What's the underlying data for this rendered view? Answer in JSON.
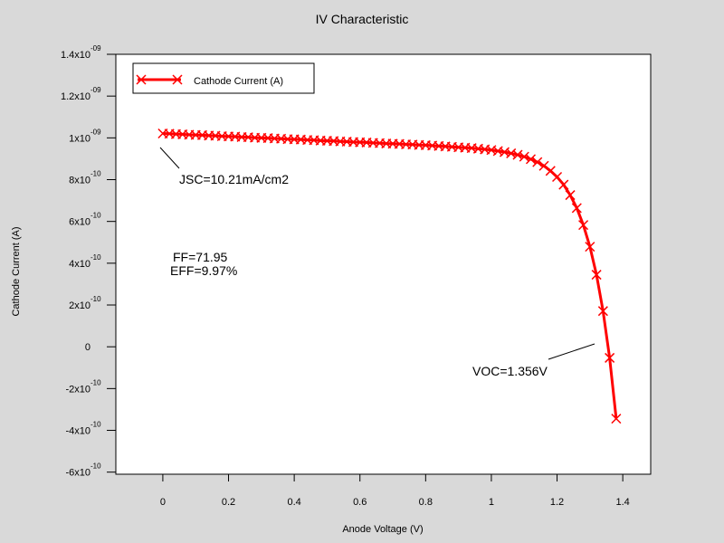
{
  "chart_data": {
    "type": "line",
    "title": "IV Characteristic",
    "x_label": "Anode Voltage (V)",
    "y_label": "Cathode Current (A)",
    "xlim": [
      -0.143,
      1.485
    ],
    "ylim": [
      -6.1e-10,
      1.4e-09
    ],
    "xticks": [
      0,
      0.2,
      0.4,
      0.6,
      0.8,
      1,
      1.2,
      1.4
    ],
    "yticks": [
      {
        "value": -6e-10,
        "label": "-6x10",
        "exponent": "-10"
      },
      {
        "value": -4e-10,
        "label": "-4x10",
        "exponent": "-10"
      },
      {
        "value": -2e-10,
        "label": "-2x10",
        "exponent": "-10"
      },
      0,
      {
        "value": 2e-10,
        "label": "2x10",
        "exponent": "-10"
      },
      {
        "value": 4e-10,
        "label": "4x10",
        "exponent": "-10"
      },
      {
        "value": 6e-10,
        "label": "6x10",
        "exponent": "-10"
      },
      {
        "value": 8e-10,
        "label": "8x10",
        "exponent": "-10"
      },
      {
        "value": 1e-09,
        "label": "1x10",
        "exponent": "-09"
      },
      {
        "value": 1.2e-09,
        "label": "1.2x10",
        "exponent": "-09"
      },
      {
        "value": 1.4e-09,
        "label": "1.4x10",
        "exponent": "-09"
      }
    ],
    "legend": "top-left",
    "annotations": [
      "JSC=10.21mA/cm2",
      "FF=71.95",
      "EFF=9.97%",
      "VOC=1.356V"
    ],
    "x": [
      0,
      0.02,
      0.04,
      0.06,
      0.08,
      0.1,
      0.12,
      0.14,
      0.16,
      0.18,
      0.2,
      0.22,
      0.24,
      0.26,
      0.28,
      0.3,
      0.32,
      0.34,
      0.36,
      0.38,
      0.4,
      0.42,
      0.44,
      0.46,
      0.48,
      0.5,
      0.52,
      0.54,
      0.56,
      0.58,
      0.6,
      0.62,
      0.64,
      0.66,
      0.68,
      0.7,
      0.72,
      0.74,
      0.76,
      0.78,
      0.8,
      0.82,
      0.84,
      0.86,
      0.88,
      0.9,
      0.92,
      0.94,
      0.96,
      0.98,
      1,
      1.02,
      1.04,
      1.06,
      1.08,
      1.1,
      1.12,
      1.14,
      1.16,
      1.18,
      1.2,
      1.22,
      1.24,
      1.26,
      1.28,
      1.3,
      1.32,
      1.34,
      1.36,
      1.38
    ],
    "series": [
      {
        "name": "Cathode Current (A)",
        "color": "#ff0000",
        "values": [
          1.021e-09,
          1.02e-09,
          1.018e-09,
          1.017e-09,
          1.015e-09,
          1.014e-09,
          1.013e-09,
          1.011e-09,
          1.01e-09,
          1.008e-09,
          1.007e-09,
          1.006e-09,
          1.004e-09,
          1.003e-09,
          1.001e-09,
          1e-09,
          9.99e-10,
          9.97e-10,
          9.96e-10,
          9.94e-10,
          9.93e-10,
          9.92e-10,
          9.9e-10,
          9.89e-10,
          9.87e-10,
          9.86e-10,
          9.85e-10,
          9.83e-10,
          9.82e-10,
          9.8e-10,
          9.79e-10,
          9.78e-10,
          9.76e-10,
          9.75e-10,
          9.73e-10,
          9.72e-10,
          9.71e-10,
          9.69e-10,
          9.68e-10,
          9.66e-10,
          9.65e-10,
          9.63e-10,
          9.61e-10,
          9.59e-10,
          9.57e-10,
          9.55e-10,
          9.53e-10,
          9.51e-10,
          9.48e-10,
          9.45e-10,
          9.42e-10,
          9.37e-10,
          9.32e-10,
          9.26e-10,
          9.19e-10,
          9.1e-10,
          8.98e-10,
          8.84e-10,
          8.66e-10,
          8.42e-10,
          8.13e-10,
          7.76e-10,
          7.26e-10,
          6.64e-10,
          5.83e-10,
          4.79e-10,
          3.45e-10,
          1.71e-10,
          -5.3e-11,
          -3.44e-10
        ]
      }
    ]
  }
}
